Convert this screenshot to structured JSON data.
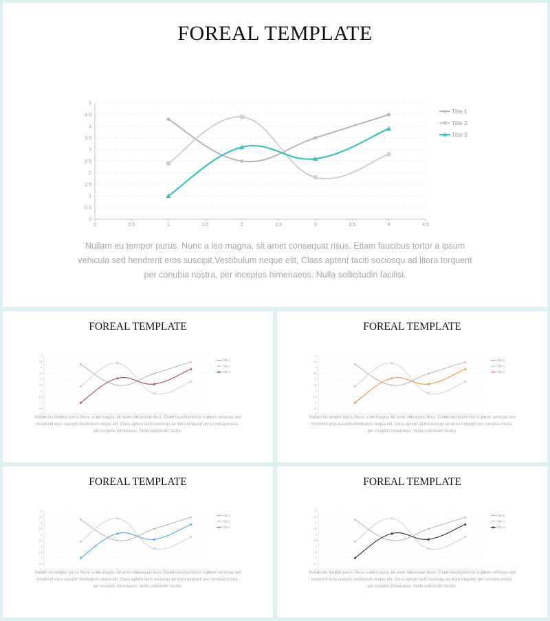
{
  "slides": [
    {
      "id": "main",
      "title": "FOREAL TEMPLATE",
      "body": "Nullam eu tempor purus. Nunc a leo magna, sit amet consequat risus. Etiam faucibus tortor a ipsum vehicula sed hendrerit eros suscipit.Vestibulum neque elit, Class aptent taciti sociosqu ad litora torquent per conubia nostra, per inceptos himenaeos. Nulla sollicitudin facilisi.",
      "accent": "#3dbfbf"
    },
    {
      "id": "pink",
      "title": "FOREAL TEMPLATE",
      "body": "Nullam eu tempor purus. Nunc a leo magna, sit amet consequat risus. Etiam faucibus tortor a ipsum vehicula sed hendrerit eros suscipit.Vestibulum neque elit, Class aptent taciti sociosqu ad litora torquent per conubia nostra, per inceptos himenaeos. Nulla sollicitudin facilisi.",
      "accent": "#a8475f"
    },
    {
      "id": "orange",
      "title": "FOREAL TEMPLATE",
      "body": "Nullam eu tempor purus. Nunc a leo magna, sit amet consequat risus. Etiam faucibus tortor a ipsum vehicula sed hendrerit eros suscipit.Vestibulum neque elit, Class aptent taciti sociosqu ad litora torquent per conubia nostra, per inceptos himenaeos. Nulla sollicitudin facilisi.",
      "accent": "#f0953a"
    },
    {
      "id": "blue",
      "title": "FOREAL TEMPLATE",
      "body": "Nullam eu tempor purus. Nunc a leo magna, sit amet consequat risus. Etiam faucibus tortor a ipsum vehicula sed hendrerit eros suscipit.Vestibulum neque elit, Class aptent taciti sociosqu ad litora torquent per conubia nostra, per inceptos himenaeos. Nulla sollicitudin facilisi.",
      "accent": "#4aa8e0"
    },
    {
      "id": "dark",
      "title": "FOREAL TEMPLATE",
      "body": "Nullam eu tempor purus. Nunc a leo magna, sit amet consequat risus. Etiam faucibus tortor a ipsum vehicula sed hendrerit eros suscipit.Vestibulum neque elit, Class aptent taciti sociosqu ad litora torquent per conubia nostra, per inceptos himenaeos. Nulla sollicitudin facilisi.",
      "accent": "#2a2a2a"
    }
  ],
  "colors": {
    "series1": "#b5b5b5",
    "series2": "#d0d0d0",
    "axis": "#c8c8c8",
    "grid": "#ececec",
    "tick_text": "#9a9a9a"
  },
  "chart_data": {
    "type": "line",
    "smooth": true,
    "xlim": [
      0,
      4.5
    ],
    "ylim": [
      0,
      5
    ],
    "x_ticks": [
      "0",
      "0.5",
      "1",
      "1.5",
      "2",
      "2.5",
      "3",
      "3.5",
      "4",
      "4.5"
    ],
    "y_ticks": [
      "0",
      "0.5",
      "1",
      "1.5",
      "2",
      "2.5",
      "3",
      "3.5",
      "4",
      "4.5",
      "5"
    ],
    "grid": true,
    "legend_position": "right",
    "series": [
      {
        "name": "Title 1",
        "marker": "diamond",
        "x": [
          1,
          2,
          3,
          4
        ],
        "y": [
          4.3,
          2.5,
          3.5,
          4.5
        ]
      },
      {
        "name": "Title 2",
        "marker": "square",
        "x": [
          1,
          2,
          3,
          4
        ],
        "y": [
          2.4,
          4.4,
          1.8,
          2.8
        ]
      },
      {
        "name": "Title 3",
        "marker": "triangle",
        "x": [
          1,
          2,
          3,
          4
        ],
        "y": [
          1.0,
          3.1,
          2.6,
          3.9
        ]
      }
    ]
  }
}
